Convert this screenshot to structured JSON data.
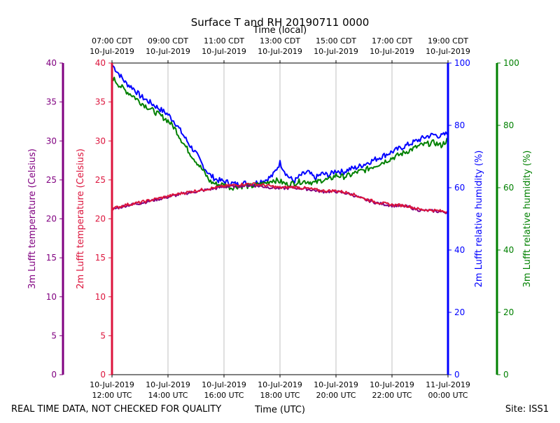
{
  "chart_data": {
    "type": "line",
    "title": "Surface T and RH 20190711 0000",
    "xlabel": "Time (UTC)",
    "xlabel_top": "Time (local)",
    "footer_left": "REAL TIME DATA, NOT CHECKED FOR QUALITY",
    "footer_right": "Site: ISS1",
    "xlim": [
      0,
      12
    ],
    "x_unit": "hours since 10-Jul-2019 12:00 UTC",
    "ticks_bottom": [
      {
        "x": 0,
        "line1": "10-Jul-2019",
        "line2": "12:00 UTC"
      },
      {
        "x": 2,
        "line1": "10-Jul-2019",
        "line2": "14:00 UTC"
      },
      {
        "x": 4,
        "line1": "10-Jul-2019",
        "line2": "16:00 UTC"
      },
      {
        "x": 6,
        "line1": "10-Jul-2019",
        "line2": "18:00 UTC"
      },
      {
        "x": 8,
        "line1": "10-Jul-2019",
        "line2": "20:00 UTC"
      },
      {
        "x": 10,
        "line1": "10-Jul-2019",
        "line2": "22:00 UTC"
      },
      {
        "x": 12,
        "line1": "11-Jul-2019",
        "line2": "00:00 UTC"
      }
    ],
    "ticks_top": [
      {
        "x": 0,
        "line1": "07:00 CDT",
        "line2": "10-Jul-2019"
      },
      {
        "x": 2,
        "line1": "09:00 CDT",
        "line2": "10-Jul-2019"
      },
      {
        "x": 4,
        "line1": "11:00 CDT",
        "line2": "10-Jul-2019"
      },
      {
        "x": 6,
        "line1": "13:00 CDT",
        "line2": "10-Jul-2019"
      },
      {
        "x": 8,
        "line1": "15:00 CDT",
        "line2": "10-Jul-2019"
      },
      {
        "x": 10,
        "line1": "17:00 CDT",
        "line2": "10-Jul-2019"
      },
      {
        "x": 12,
        "line1": "19:00 CDT",
        "line2": "10-Jul-2019"
      }
    ],
    "axes": [
      {
        "id": "t3",
        "label": "3m Lufft temperature (Celsius)",
        "color": "#800080",
        "ylim": [
          0,
          40
        ],
        "ticks": [
          "0",
          "5",
          "10",
          "15",
          "20",
          "25",
          "30",
          "35",
          "40"
        ]
      },
      {
        "id": "t2",
        "label": "2m Lufft temperature (Celsius)",
        "color": "#dc143c",
        "ylim": [
          0,
          40
        ],
        "ticks": [
          "0",
          "5",
          "10",
          "15",
          "20",
          "25",
          "30",
          "35",
          "40"
        ]
      },
      {
        "id": "rh2",
        "label": "2m Lufft relative humidity (%)",
        "color": "#0000ff",
        "ylim": [
          0,
          100
        ],
        "ticks": [
          "0",
          "20",
          "40",
          "60",
          "80",
          "100"
        ]
      },
      {
        "id": "rh3",
        "label": "3m Lufft relative humidity (%)",
        "color": "#008000",
        "ylim": [
          0,
          100
        ],
        "ticks": [
          "0",
          "20",
          "40",
          "60",
          "80",
          "100"
        ]
      }
    ],
    "series": [
      {
        "name": "2m Lufft temperature",
        "axis": "t2",
        "color": "#dc143c",
        "x": [
          0,
          0.5,
          1.0,
          1.5,
          2.0,
          2.5,
          3.0,
          3.5,
          4.0,
          4.5,
          5.0,
          5.5,
          6.0,
          6.5,
          7.0,
          7.5,
          8.0,
          8.5,
          9.0,
          9.5,
          10.0,
          10.5,
          11.0,
          11.5,
          12.0
        ],
        "y": [
          21.3,
          21.8,
          22.1,
          22.5,
          22.9,
          23.3,
          23.6,
          23.9,
          24.2,
          24.4,
          24.5,
          24.3,
          24.0,
          24.1,
          23.9,
          23.6,
          23.6,
          23.3,
          22.6,
          22.1,
          21.8,
          21.7,
          21.2,
          21.1,
          20.9
        ]
      },
      {
        "name": "3m Lufft temperature",
        "axis": "t3",
        "color": "#800080",
        "x": [
          0,
          0.5,
          1.0,
          1.5,
          2.0,
          2.5,
          3.0,
          3.5,
          4.0,
          4.5,
          5.0,
          5.5,
          6.0,
          6.5,
          7.0,
          7.5,
          8.0,
          8.5,
          9.0,
          9.5,
          10.0,
          10.5,
          11.0,
          11.5,
          12.0
        ],
        "y": [
          21.2,
          21.7,
          22.0,
          22.4,
          22.8,
          23.2,
          23.5,
          23.8,
          24.1,
          24.2,
          24.3,
          24.1,
          23.9,
          24.0,
          23.8,
          23.5,
          23.5,
          23.2,
          22.5,
          22.0,
          21.7,
          21.6,
          21.1,
          21.0,
          20.8
        ]
      },
      {
        "name": "2m Lufft relative humidity",
        "axis": "rh2",
        "color": "#0000ff",
        "x": [
          0,
          0.25,
          0.5,
          0.75,
          1.0,
          1.25,
          1.5,
          1.75,
          2.0,
          2.25,
          2.5,
          2.75,
          3.0,
          3.25,
          3.5,
          3.75,
          4.0,
          4.25,
          4.5,
          4.75,
          5.0,
          5.25,
          5.5,
          5.75,
          6.0,
          6.25,
          6.5,
          6.75,
          7.0,
          7.25,
          7.5,
          7.75,
          8.0,
          8.25,
          8.5,
          8.75,
          9.0,
          9.25,
          9.5,
          9.75,
          10.0,
          10.25,
          10.5,
          10.75,
          11.0,
          11.25,
          11.5,
          11.75,
          12.0
        ],
        "y": [
          99.5,
          96.5,
          93.5,
          92.0,
          89.5,
          88.0,
          86.5,
          85.0,
          83.5,
          81.0,
          77.5,
          74.0,
          71.0,
          67.0,
          64.0,
          62.5,
          62.0,
          61.5,
          61.0,
          61.5,
          61.0,
          62.0,
          62.5,
          64.0,
          68.0,
          64.0,
          62.0,
          64.0,
          65.0,
          63.0,
          64.5,
          64.0,
          65.5,
          65.0,
          66.0,
          66.5,
          67.5,
          68.5,
          69.5,
          70.5,
          71.5,
          72.5,
          73.5,
          74.5,
          75.5,
          76.5,
          77.0,
          76.5,
          77.5
        ]
      },
      {
        "name": "3m Lufft relative humidity",
        "axis": "rh3",
        "color": "#008000",
        "x": [
          0,
          0.25,
          0.5,
          0.75,
          1.0,
          1.25,
          1.5,
          1.75,
          2.0,
          2.25,
          2.5,
          2.75,
          3.0,
          3.25,
          3.5,
          3.75,
          4.0,
          4.25,
          4.5,
          4.75,
          5.0,
          5.25,
          5.5,
          5.75,
          6.0,
          6.25,
          6.5,
          6.75,
          7.0,
          7.25,
          7.5,
          7.75,
          8.0,
          8.25,
          8.5,
          8.75,
          9.0,
          9.25,
          9.5,
          9.75,
          10.0,
          10.25,
          10.5,
          10.75,
          11.0,
          11.25,
          11.5,
          11.75,
          12.0
        ],
        "y": [
          95.5,
          93.0,
          91.0,
          89.5,
          87.5,
          86.0,
          84.5,
          83.0,
          81.5,
          79.0,
          75.0,
          71.5,
          68.5,
          65.5,
          62.0,
          61.0,
          61.0,
          60.0,
          60.5,
          60.5,
          60.5,
          61.0,
          61.5,
          62.5,
          62.0,
          61.0,
          61.5,
          62.0,
          62.0,
          61.5,
          62.5,
          62.5,
          64.0,
          63.5,
          64.0,
          65.0,
          65.5,
          66.5,
          67.5,
          68.5,
          69.5,
          70.5,
          71.5,
          72.5,
          73.5,
          74.0,
          74.5,
          73.5,
          75.5
        ]
      }
    ]
  }
}
